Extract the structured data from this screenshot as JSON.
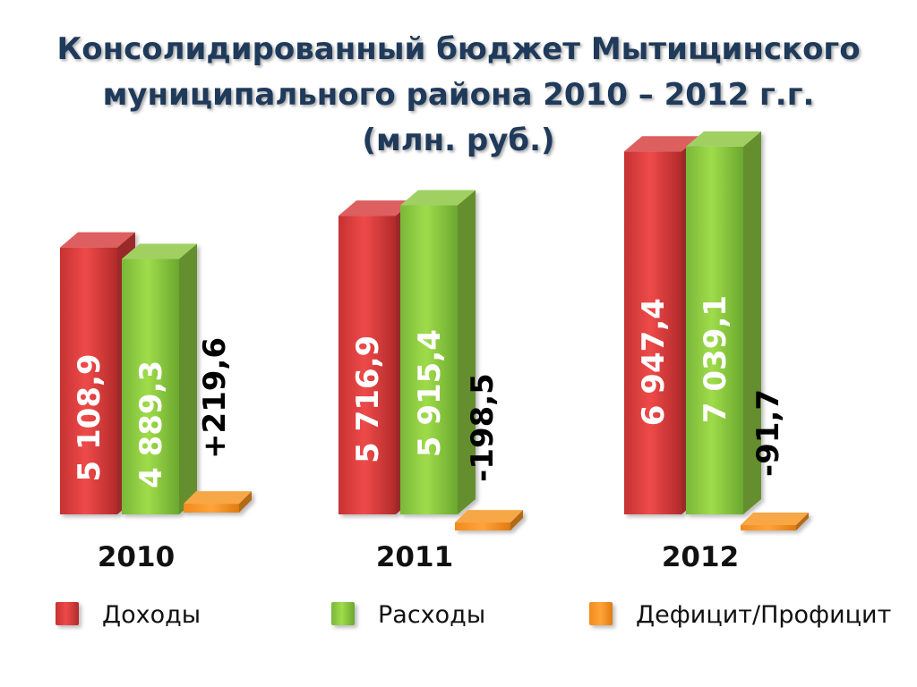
{
  "title_lines": [
    "Консолидированный бюджет Мытищинского",
    "муниципального района 2010 – 2012 г.г.",
    "(млн. руб.)"
  ],
  "chart_data": {
    "type": "bar",
    "title": "Консолидированный бюджет Мытищинского муниципального района 2010 – 2012 г.г. (млн. руб.)",
    "categories": [
      "2010",
      "2011",
      "2012"
    ],
    "series": [
      {
        "name": "Доходы",
        "color": "#d63c3c",
        "values": [
          5108.9,
          5716.9,
          6947.4
        ],
        "labels": [
          "5 108,9",
          "5 716,9",
          "6 947,4"
        ]
      },
      {
        "name": "Расходы",
        "color": "#8cc63f",
        "values": [
          4889.3,
          5915.4,
          7039.1
        ],
        "labels": [
          "4 889,3",
          "5 915,4",
          "7 039,1"
        ]
      },
      {
        "name": "Дефицит/Профицит",
        "color": "#f7941d",
        "values": [
          219.6,
          -198.5,
          -91.7
        ],
        "labels": [
          "+219,6",
          "-198,5",
          "-91,7"
        ]
      }
    ],
    "legend_position": "bottom",
    "grid": false,
    "style": "3d-columns"
  }
}
